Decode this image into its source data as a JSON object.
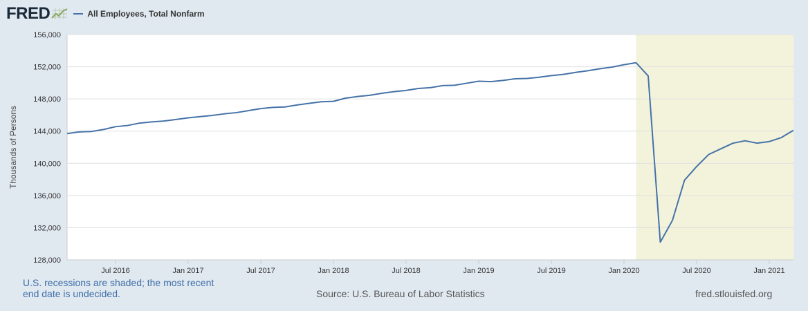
{
  "header": {
    "logo_text": "FRED",
    "legend_label": "All Employees, Total Nonfarm",
    "series_color": "#4572a7"
  },
  "chart_data": {
    "type": "line",
    "title": "All Employees, Total Nonfarm",
    "ylabel": "Thousands of Persons",
    "xlabel": "",
    "ylim": [
      128000,
      156000
    ],
    "yticks": [
      128000,
      132000,
      136000,
      140000,
      144000,
      148000,
      152000,
      156000
    ],
    "ytick_labels": [
      "128,000",
      "132,000",
      "136,000",
      "140,000",
      "144,000",
      "148,000",
      "152,000",
      "156,000"
    ],
    "xtick_labels": [
      "Jul 2016",
      "Jan 2017",
      "Jul 2017",
      "Jan 2018",
      "Jul 2018",
      "Jan 2019",
      "Jul 2019",
      "Jan 2020",
      "Jul 2020",
      "Jan 2021"
    ],
    "xtick_months": [
      4,
      10,
      16,
      22,
      28,
      34,
      40,
      46,
      52,
      58
    ],
    "x_range_months": [
      0,
      60
    ],
    "recession_start_month": 47,
    "recession_color": "#f3f3dc",
    "series": [
      {
        "name": "All Employees, Total Nonfarm",
        "color": "#4572a7",
        "start": "Mar 2016",
        "values": [
          143700,
          143900,
          143950,
          144200,
          144550,
          144700,
          145000,
          145150,
          145250,
          145450,
          145650,
          145800,
          145950,
          146150,
          146300,
          146550,
          146800,
          146950,
          147000,
          147250,
          147450,
          147650,
          147700,
          148100,
          148300,
          148450,
          148700,
          148900,
          149050,
          149300,
          149400,
          149650,
          149700,
          149950,
          150200,
          150150,
          150300,
          150500,
          150550,
          150700,
          150900,
          151050,
          151300,
          151500,
          151750,
          151950,
          152250,
          152500,
          150850,
          130200,
          132900,
          137900,
          139600,
          141100,
          141800,
          142500,
          142800,
          142500,
          142700,
          143200,
          144100
        ]
      }
    ],
    "grid": true
  },
  "footer": {
    "recession_note": "U.S. recessions are shaded; the most recent end date is undecided.",
    "source": "Source: U.S. Bureau of Labor Statistics",
    "website": "fred.stlouisfed.org"
  }
}
